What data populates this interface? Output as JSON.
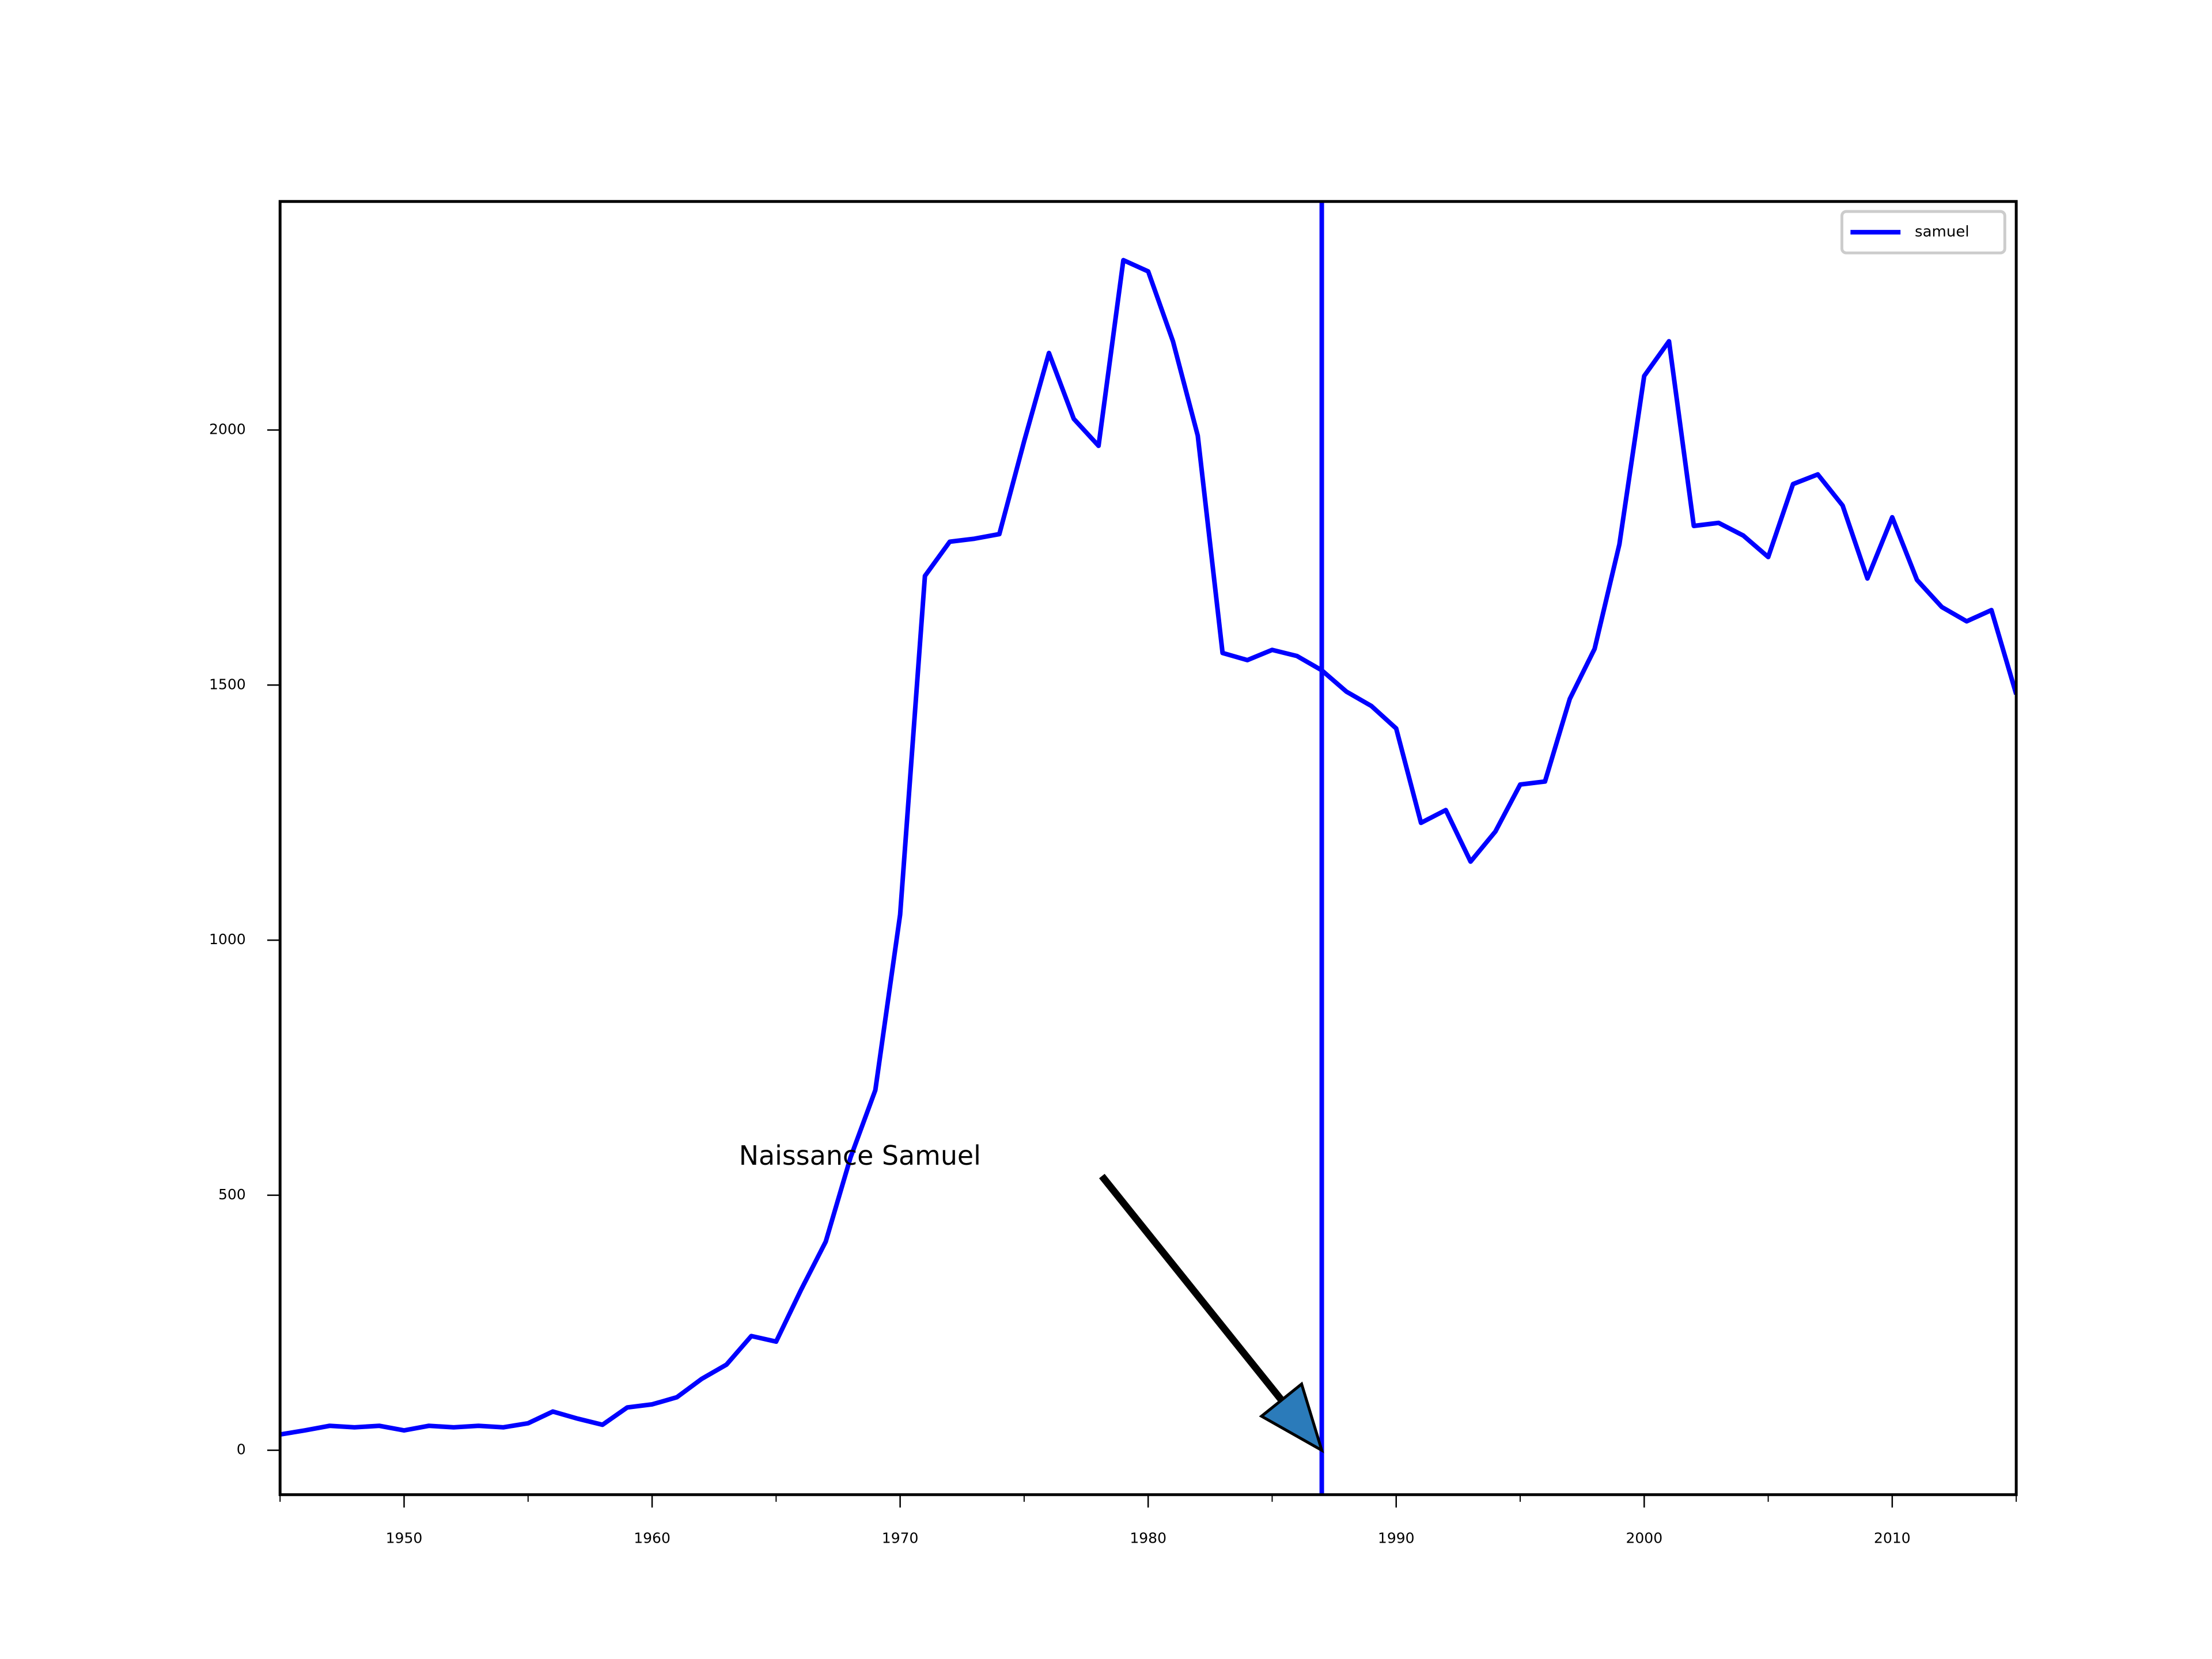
{
  "chart_data": {
    "type": "line",
    "x": [
      1945,
      1946,
      1947,
      1948,
      1949,
      1950,
      1951,
      1952,
      1953,
      1954,
      1955,
      1956,
      1957,
      1958,
      1959,
      1960,
      1961,
      1962,
      1963,
      1964,
      1965,
      1966,
      1967,
      1968,
      1969,
      1970,
      1971,
      1972,
      1973,
      1974,
      1975,
      1976,
      1977,
      1978,
      1979,
      1980,
      1981,
      1982,
      1983,
      1984,
      1985,
      1986,
      1987,
      1988,
      1989,
      1990,
      1991,
      1992,
      1993,
      1994,
      1995,
      1996,
      1997,
      1998,
      1999,
      2000,
      2001,
      2002,
      2003,
      2004,
      2005,
      2006,
      2007,
      2008,
      2009,
      2010,
      2011,
      2012,
      2013,
      2014,
      2015
    ],
    "series": [
      {
        "name": "samuel",
        "color": "#0000ff",
        "values": [
          31,
          39,
          48,
          45,
          48,
          39,
          48,
          45,
          48,
          45,
          53,
          76,
          62,
          50,
          84,
          90,
          104,
          140,
          168,
          224,
          213,
          314,
          409,
          574,
          706,
          1050,
          1714,
          1781,
          1787,
          1796,
          1978,
          2151,
          2022,
          1969,
          2333,
          2311,
          2174,
          1989,
          1563,
          1549,
          1569,
          1557,
          1529,
          1487,
          1459,
          1415,
          1230,
          1255,
          1154,
          1213,
          1305,
          1311,
          1473,
          1571,
          1776,
          2106,
          2174,
          1812,
          1818,
          1793,
          1751,
          1894,
          1913,
          1852,
          1709,
          1829,
          1706,
          1653,
          1625,
          1647,
          1482
        ]
      }
    ],
    "xlim": [
      1945,
      2015
    ],
    "ylim": [
      -87,
      2448
    ],
    "xticks": [
      1950,
      1960,
      1970,
      1980,
      1990,
      2000,
      2010
    ],
    "xminorticks": [
      1945,
      1955,
      1965,
      1975,
      1985,
      1995,
      2005,
      2015
    ],
    "yticks": [
      0,
      500,
      1000,
      1500,
      2000
    ],
    "vline": 1987,
    "annotation": {
      "text": "Naissance Samuel",
      "xy": [
        1987,
        0
      ],
      "xytext": [
        1963.5,
        560
      ],
      "color": "#2b7bba"
    },
    "legend": "upper right",
    "grid": false
  }
}
